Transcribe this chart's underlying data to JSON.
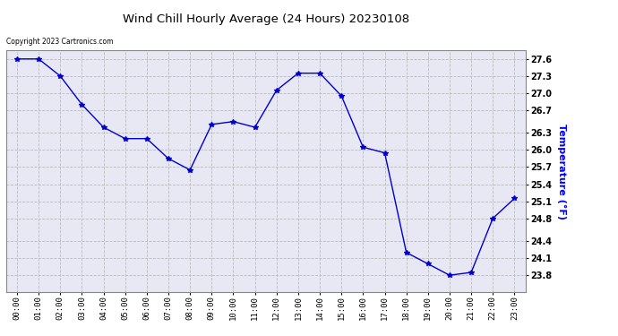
{
  "title": "Wind Chill Hourly Average (24 Hours) 20230108",
  "ylabel": "Temperature (°F)",
  "copyright_text": "Copyright 2023 Cartronics.com",
  "hours": [
    "00:00",
    "01:00",
    "02:00",
    "03:00",
    "04:00",
    "05:00",
    "06:00",
    "07:00",
    "08:00",
    "09:00",
    "10:00",
    "11:00",
    "12:00",
    "13:00",
    "14:00",
    "15:00",
    "16:00",
    "17:00",
    "18:00",
    "19:00",
    "20:00",
    "21:00",
    "22:00",
    "23:00"
  ],
  "values": [
    27.6,
    27.6,
    27.3,
    26.8,
    26.4,
    26.2,
    26.2,
    25.85,
    25.65,
    26.45,
    26.5,
    26.4,
    27.05,
    27.35,
    27.35,
    26.95,
    26.05,
    25.95,
    24.2,
    24.0,
    23.8,
    23.85,
    24.8,
    25.15
  ],
  "line_color": "#0000cc",
  "marker": "*",
  "marker_size": 4,
  "ylim_min": 23.5,
  "ylim_max": 27.75,
  "yticks": [
    23.8,
    24.1,
    24.4,
    24.8,
    25.1,
    25.4,
    25.7,
    26.0,
    26.3,
    26.7,
    27.0,
    27.3,
    27.6
  ],
  "grid_color": "#bbbbbb",
  "bg_color": "#e8e8f5",
  "ylabel_color": "#0000ff",
  "title_color": "#000000",
  "fig_width": 6.9,
  "fig_height": 3.75,
  "dpi": 100
}
